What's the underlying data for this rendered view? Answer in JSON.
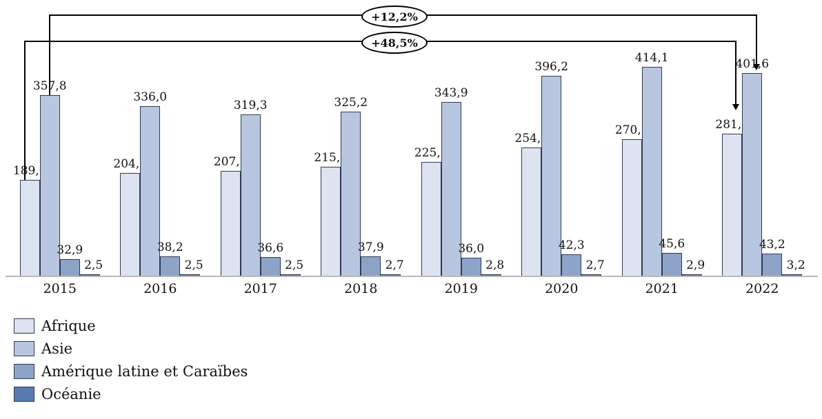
{
  "chart_data": {
    "type": "bar",
    "title": "",
    "xlabel": "",
    "ylabel": "",
    "ylim": [
      0,
      414.1
    ],
    "grid": false,
    "legend_position": "bottom-left",
    "value_format": "comma-decimal-1",
    "categories": [
      "2015",
      "2016",
      "2017",
      "2018",
      "2019",
      "2020",
      "2021",
      "2022"
    ],
    "series": [
      {
        "name": "Afrique",
        "color": "#dde3f0",
        "values": [
          189.6,
          204.1,
          207.9,
          215.6,
          225.1,
          254.7,
          270.6,
          281.6
        ]
      },
      {
        "name": "Asie",
        "color": "#b8c6e0",
        "values": [
          357.8,
          336.0,
          319.3,
          325.2,
          343.9,
          396.2,
          414.1,
          401.6
        ]
      },
      {
        "name": "Amérique latine et Caraïbes",
        "color": "#8da4c8",
        "values": [
          32.9,
          38.2,
          36.6,
          37.9,
          36.0,
          42.3,
          45.6,
          43.2
        ]
      },
      {
        "name": "Océanie",
        "color": "#5a7ab2",
        "values": [
          2.5,
          2.5,
          2.5,
          2.7,
          2.8,
          2.7,
          2.9,
          3.2
        ]
      }
    ],
    "annotations": [
      {
        "label": "+12,2%",
        "series": "Asie",
        "from": "2015",
        "to": "2022"
      },
      {
        "label": "+48,5%",
        "series": "Afrique",
        "from": "2015",
        "to": "2022"
      }
    ]
  }
}
